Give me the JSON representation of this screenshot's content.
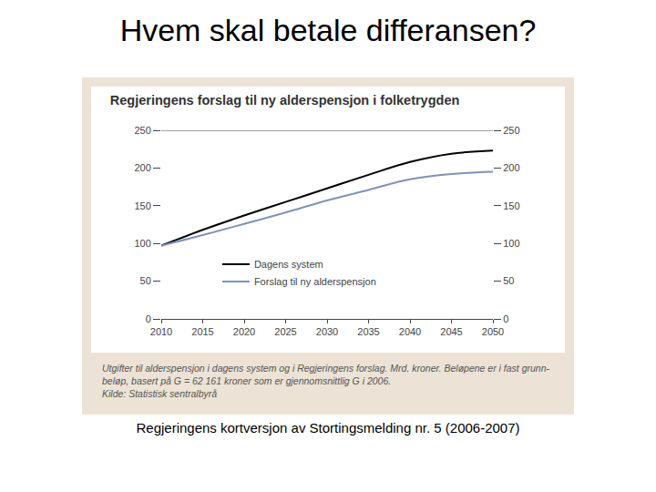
{
  "heading": "Hvem skal betale differansen?",
  "chart_data": {
    "type": "line",
    "title": "Regjeringens forslag til ny alderspensjon i folketrygden",
    "x": [
      2010,
      2015,
      2020,
      2025,
      2030,
      2035,
      2040,
      2045,
      2050
    ],
    "series": [
      {
        "name": "Dagens system",
        "color": "#000000",
        "values": [
          97,
          118,
          137,
          155,
          173,
          191,
          208,
          219,
          223
        ]
      },
      {
        "name": "Forslag til ny alderspensjon",
        "color": "#7f93b5",
        "values": [
          97,
          111,
          126,
          141,
          157,
          171,
          185,
          192,
          195
        ]
      }
    ],
    "xlim": [
      2010,
      2050
    ],
    "xticks": [
      2010,
      2015,
      2020,
      2025,
      2030,
      2035,
      2040,
      2045,
      2050
    ],
    "ylim": [
      0,
      250
    ],
    "yticks": [
      0,
      50,
      100,
      150,
      200,
      250
    ],
    "y2lim": [
      0,
      250
    ],
    "y2ticks": [
      0,
      50,
      100,
      150,
      200,
      250
    ],
    "grid": false,
    "legend": "lower left"
  },
  "caption": [
    "Utgifter til alderspensjon i dagens system og i Regjeringens forslag. Mrd. kroner. Beløpene er i fast grunn-",
    "beløp, basert på G = 62 161 kroner som er gjennomsnittlig G i 2006."
  ],
  "source": "Kilde: Statistisk sentralbyrå",
  "footer": "Regjeringens kortversjon av Stortingsmelding nr. 5 (2006-2007)"
}
